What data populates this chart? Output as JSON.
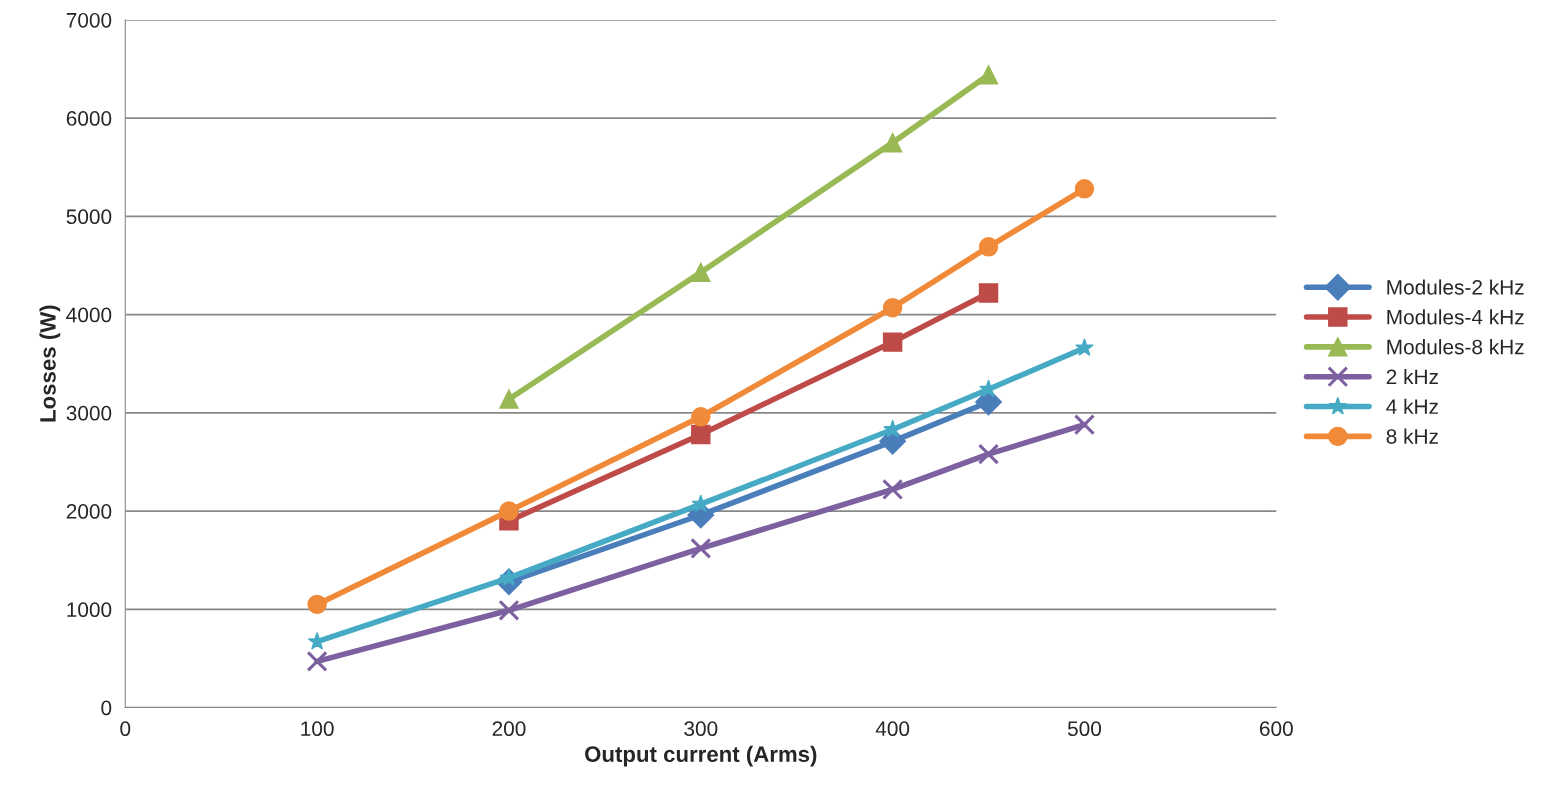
{
  "chart_data": {
    "type": "line",
    "xlabel": "Output current (Arms)",
    "ylabel": "Losses (W)",
    "xlim": [
      0,
      600
    ],
    "xticks": [
      0,
      100,
      200,
      300,
      400,
      500,
      600
    ],
    "ylim": [
      0,
      7000
    ],
    "yticks": [
      0,
      1000,
      2000,
      3000,
      4000,
      5000,
      6000,
      7000
    ],
    "grid": "y",
    "legend": "right",
    "line_style": "solid",
    "series": [
      {
        "name": "Modules-2 kHz",
        "color": "#4a7ebb",
        "marker": "diamond",
        "x": [
          200,
          300,
          400,
          450
        ],
        "values": [
          1280,
          1960,
          2710,
          3110
        ]
      },
      {
        "name": "Modules-4 kHz",
        "color": "#be4b48",
        "marker": "square",
        "x": [
          200,
          300,
          400,
          450
        ],
        "values": [
          1900,
          2780,
          3720,
          4220
        ]
      },
      {
        "name": "Modules-8 kHz",
        "color": "#98b954",
        "marker": "triangle",
        "x": [
          200,
          300,
          400,
          450
        ],
        "values": [
          3140,
          4430,
          5750,
          6440
        ]
      },
      {
        "name": "2 kHz",
        "color": "#7d60a0",
        "marker": "cross",
        "x": [
          100,
          200,
          300,
          400,
          450,
          500
        ],
        "values": [
          470,
          990,
          1620,
          2220,
          2580,
          2880
        ]
      },
      {
        "name": "4 kHz",
        "color": "#46aac5",
        "marker": "star",
        "x": [
          100,
          200,
          300,
          400,
          450,
          500
        ],
        "values": [
          670,
          1320,
          2070,
          2830,
          3240,
          3660
        ]
      },
      {
        "name": "8 kHz",
        "color": "#f08a38",
        "marker": "circle",
        "x": [
          100,
          200,
          300,
          400,
          450,
          500
        ],
        "values": [
          1050,
          2000,
          2960,
          4070,
          4690,
          5280
        ]
      }
    ]
  }
}
